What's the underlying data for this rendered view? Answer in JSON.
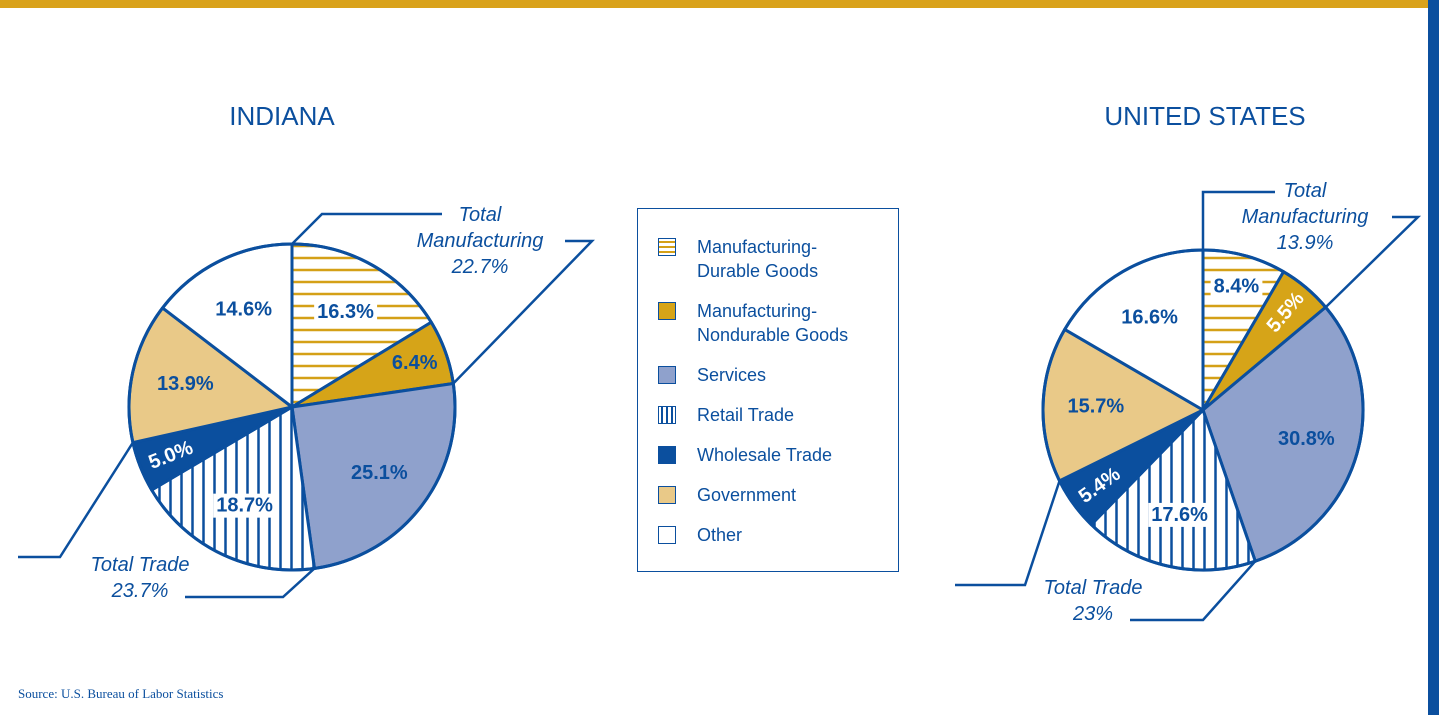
{
  "legend": [
    {
      "name": "Manufacturing-Durable Goods",
      "color": "#d4a017",
      "pattern": "horizontal"
    },
    {
      "name": "Manufacturing-Nondurable Goods",
      "color": "#d6a418",
      "pattern": "solid"
    },
    {
      "name": "Services",
      "color": "#8fa1cc",
      "pattern": "solid"
    },
    {
      "name": "Retail Trade",
      "color": "#0b4f9e",
      "pattern": "vertical"
    },
    {
      "name": "Wholesale Trade",
      "color": "#0b4f9e",
      "pattern": "solid"
    },
    {
      "name": "Government",
      "color": "#e9c988",
      "pattern": "solid"
    },
    {
      "name": "Other",
      "color": "#ffffff",
      "pattern": "solid"
    }
  ],
  "chart_data": [
    {
      "type": "pie",
      "title": "INDIANA",
      "values": [
        16.3,
        6.4,
        25.1,
        18.7,
        5.0,
        13.9,
        14.6
      ],
      "value_labels": [
        "16.3%",
        "6.4%",
        "25.1%",
        "18.7%",
        "5.0%",
        "13.9%",
        "14.6%"
      ],
      "annotations": [
        {
          "text": "Total Manufacturing",
          "value": 22.7,
          "label": "22.7%"
        },
        {
          "text": "Total Trade",
          "value": 23.7,
          "label": "23.7%"
        }
      ]
    },
    {
      "type": "pie",
      "title": "UNITED STATES",
      "values": [
        8.4,
        5.5,
        30.8,
        17.6,
        5.4,
        15.7,
        16.6
      ],
      "value_labels": [
        "8.4%",
        "5.5%",
        "30.8%",
        "17.6%",
        "5.4%",
        "15.7%",
        "16.6%"
      ],
      "annotations": [
        {
          "text": "Total Manufacturing",
          "value": 13.9,
          "label": "13.9%"
        },
        {
          "text": "Total Trade",
          "value": 23,
          "label": "23%"
        }
      ]
    }
  ],
  "source": "Source: U.S. Bureau of Labor Statistics"
}
